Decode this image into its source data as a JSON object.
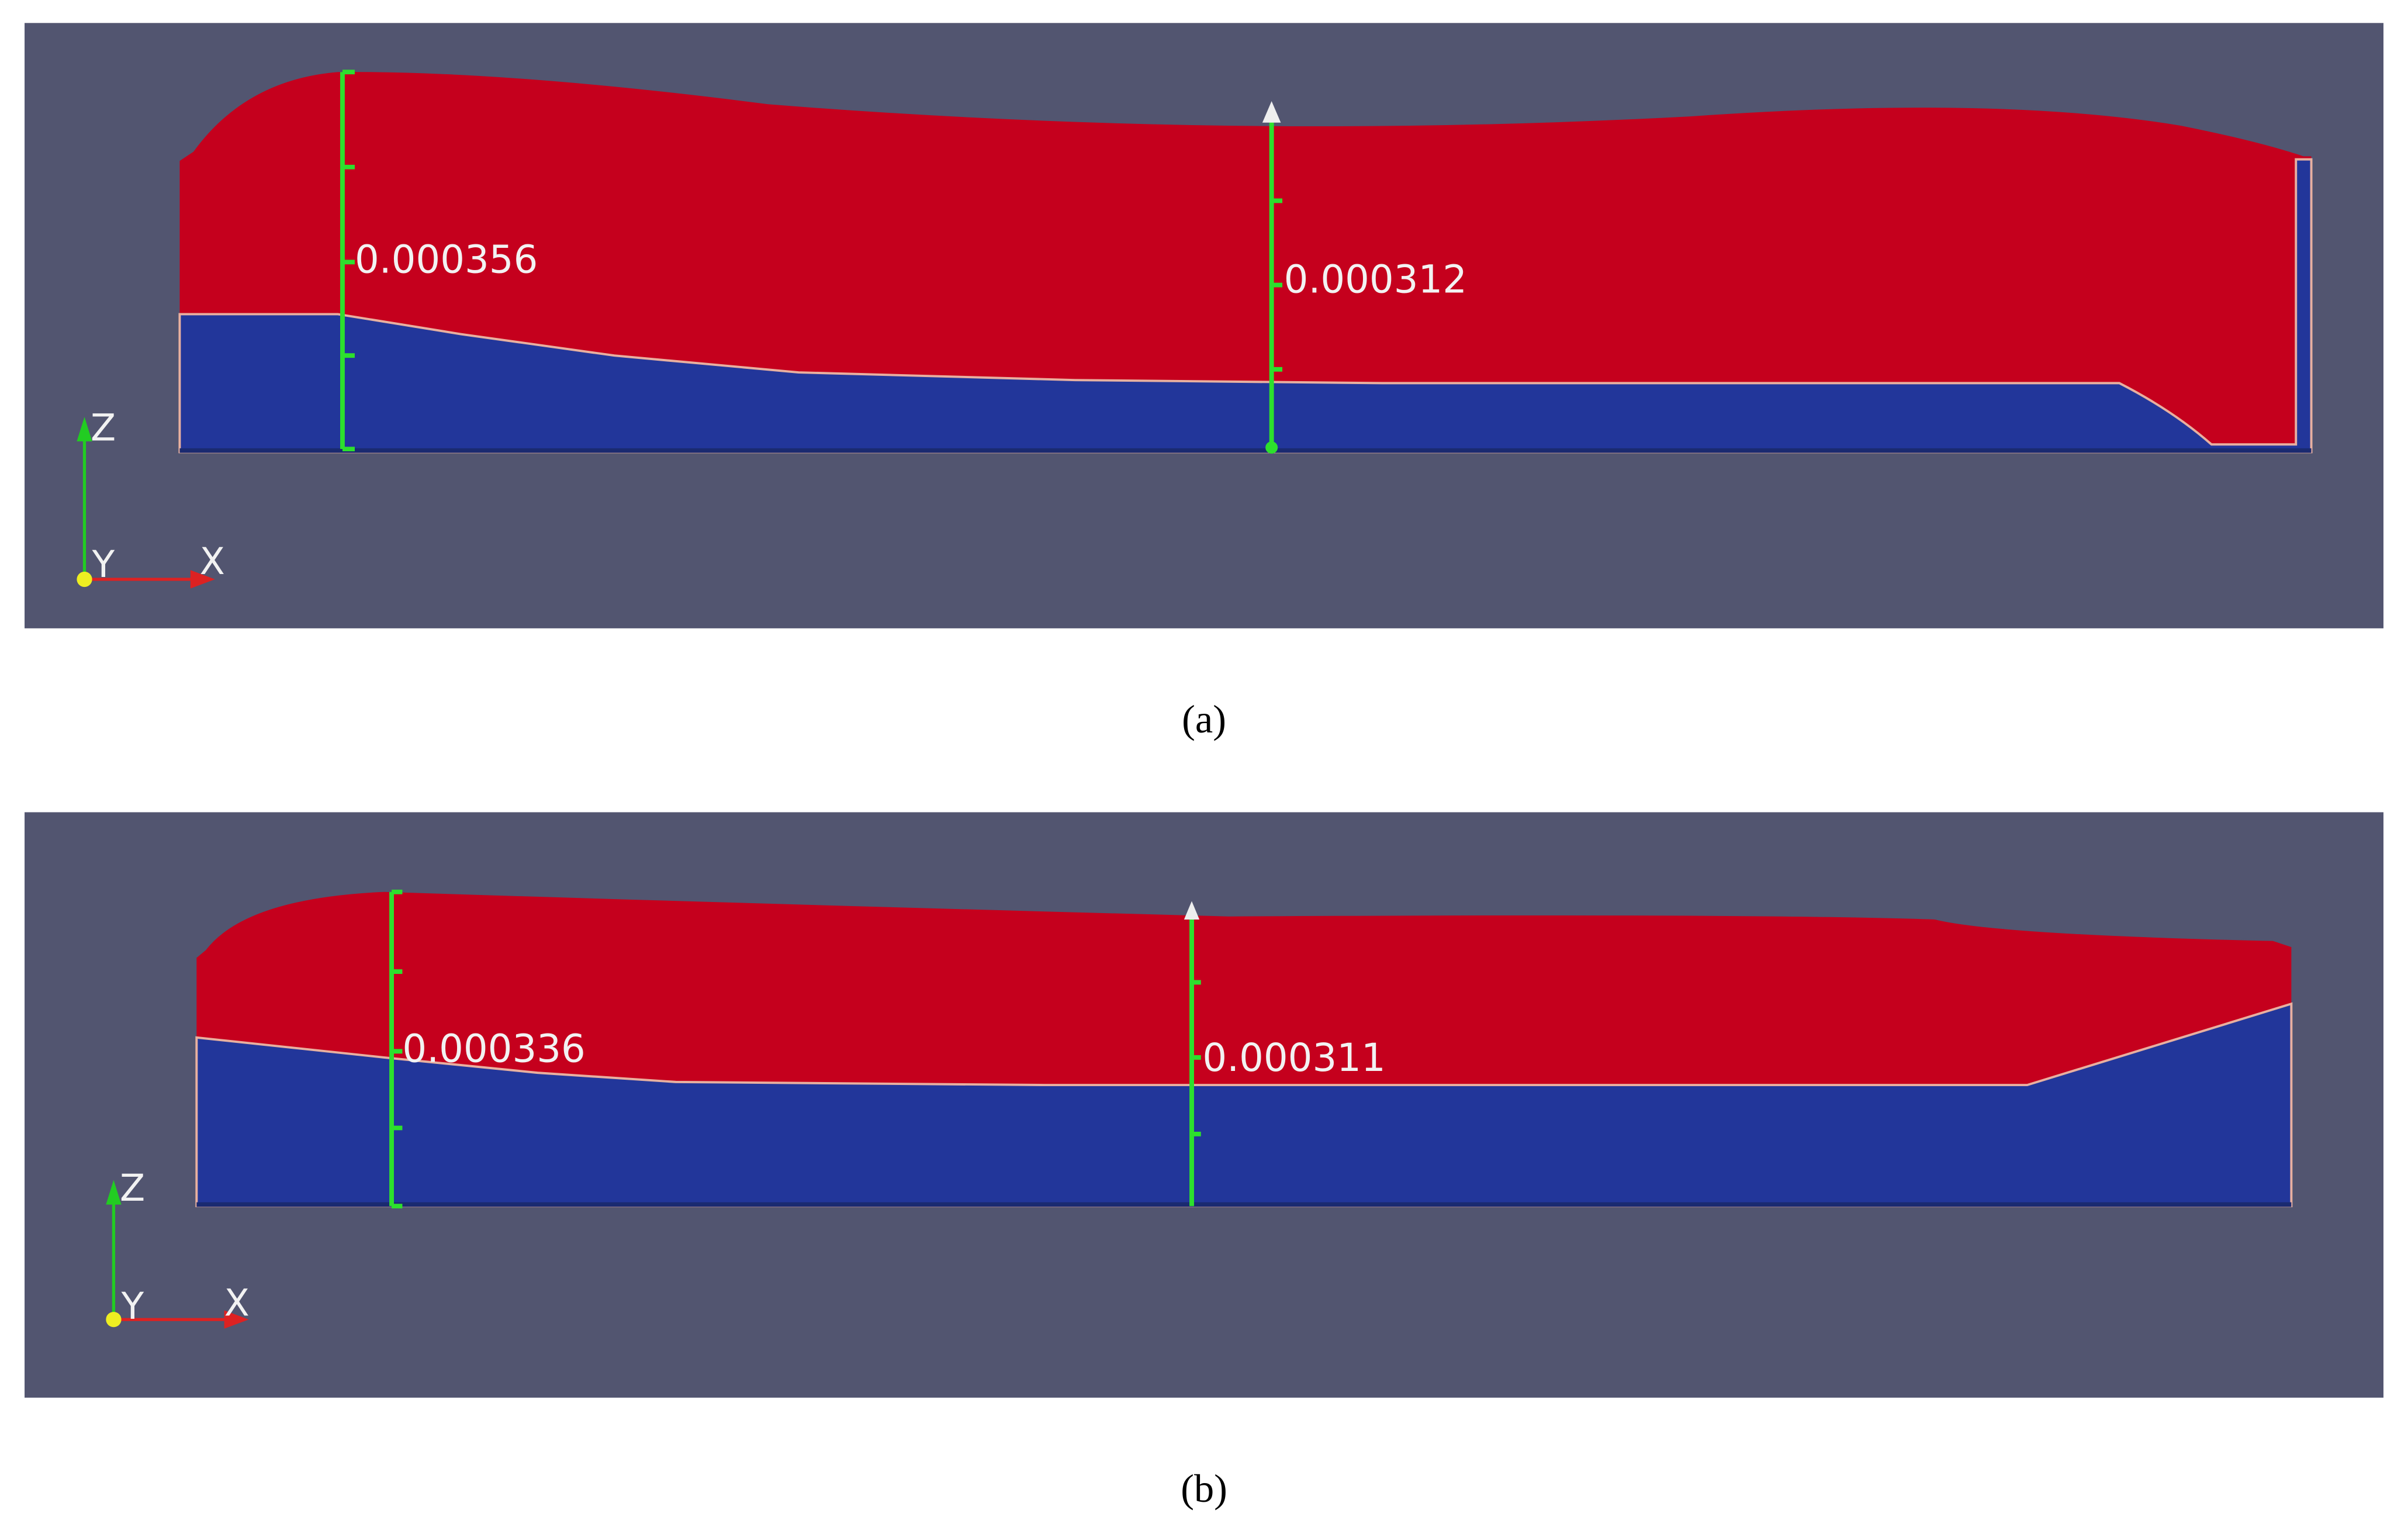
{
  "panels": [
    {
      "caption": "(a)",
      "axes": {
        "x": "X",
        "y": "Y",
        "z": "Z"
      },
      "rulers": [
        {
          "label": "0.000356"
        },
        {
          "label": "0.000312"
        }
      ]
    },
    {
      "caption": "(b)",
      "axes": {
        "x": "X",
        "y": "Y",
        "z": "Z"
      },
      "rulers": [
        {
          "label": "0.000336"
        },
        {
          "label": "0.000311"
        }
      ]
    }
  ]
}
